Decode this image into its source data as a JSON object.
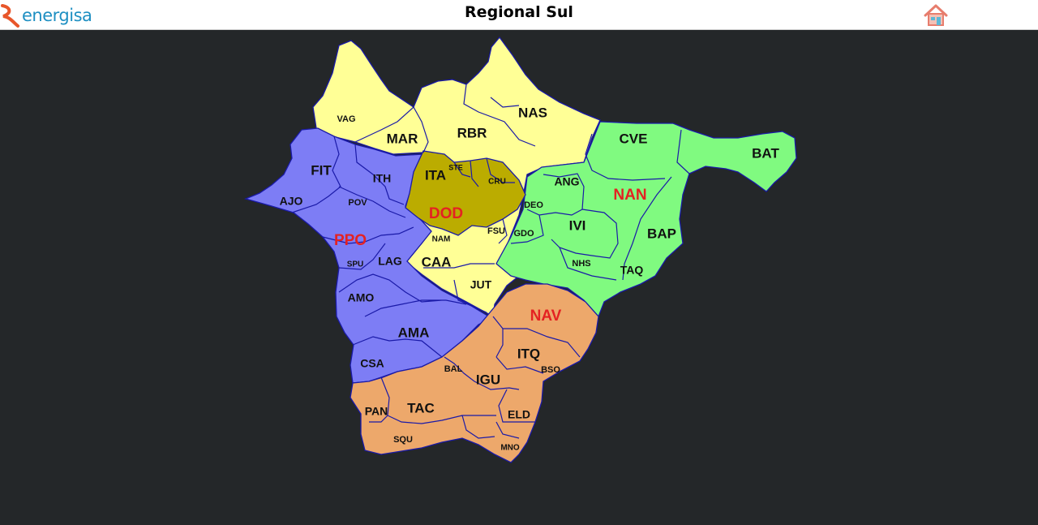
{
  "header": {
    "logo_text": "energisa",
    "title": "Regional Sul",
    "home_icon": "home-icon"
  },
  "colors": {
    "yellow": "#ffff96",
    "purple": "#7d7df5",
    "olive": "#bbac00",
    "green": "#80fa80",
    "orange": "#eda86b",
    "border": "#1a1aa8",
    "group_label": "#e42222",
    "background": "#242729"
  },
  "map": {
    "groups": [
      "NAN",
      "DOD",
      "PPO",
      "NAV"
    ],
    "regions": [
      "VAG",
      "MAR",
      "RBR",
      "NAS",
      "CVE",
      "BAT",
      "FIT",
      "ITH",
      "ITA",
      "STE",
      "CRU",
      "ANG",
      "AJO",
      "POV",
      "DEO",
      "IVI",
      "BAP",
      "NAM",
      "FSU",
      "GDO",
      "SPU",
      "LAG",
      "CAA",
      "NHS",
      "TAQ",
      "JUT",
      "AMO",
      "AMA",
      "CSA",
      "ITQ",
      "BAL",
      "BSO",
      "IGU",
      "TAC",
      "PAN",
      "ELD",
      "SQU",
      "MNO"
    ]
  }
}
